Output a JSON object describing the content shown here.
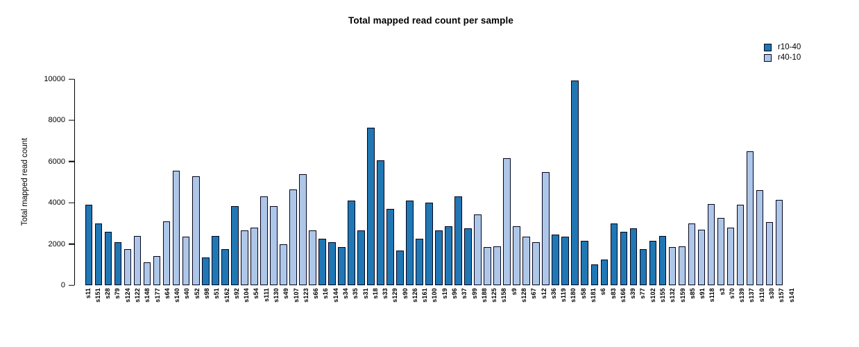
{
  "chart_data": {
    "type": "bar",
    "title": "Total mapped read count per sample",
    "xlabel": "",
    "ylabel": "Total mapped read count",
    "ylim": [
      0,
      10000
    ],
    "yticks": [
      0,
      2000,
      4000,
      6000,
      8000,
      10000
    ],
    "grid": false,
    "legend_position": "top-right",
    "groups": [
      {
        "name": "r10-40",
        "color": "#2077b4"
      },
      {
        "name": "r40-10",
        "color": "#aec7e8"
      }
    ],
    "bars": [
      {
        "sample": "s11",
        "group": "r10-40",
        "value": 3900
      },
      {
        "sample": "s151",
        "group": "r10-40",
        "value": 3000
      },
      {
        "sample": "s28",
        "group": "r10-40",
        "value": 2600
      },
      {
        "sample": "s79",
        "group": "r10-40",
        "value": 2100
      },
      {
        "sample": "s124",
        "group": "r40-10",
        "value": 1750
      },
      {
        "sample": "s122",
        "group": "r40-10",
        "value": 2400
      },
      {
        "sample": "s148",
        "group": "r40-10",
        "value": 1100
      },
      {
        "sample": "s177",
        "group": "r40-10",
        "value": 1400
      },
      {
        "sample": "s64",
        "group": "r40-10",
        "value": 3100
      },
      {
        "sample": "s140",
        "group": "r40-10",
        "value": 5550
      },
      {
        "sample": "s40",
        "group": "r40-10",
        "value": 2350
      },
      {
        "sample": "s52",
        "group": "r40-10",
        "value": 5300
      },
      {
        "sample": "s98",
        "group": "r10-40",
        "value": 1350
      },
      {
        "sample": "s51",
        "group": "r10-40",
        "value": 2400
      },
      {
        "sample": "s162",
        "group": "r10-40",
        "value": 1750
      },
      {
        "sample": "s92",
        "group": "r10-40",
        "value": 3850
      },
      {
        "sample": "s104",
        "group": "r40-10",
        "value": 2650
      },
      {
        "sample": "s54",
        "group": "r40-10",
        "value": 2800
      },
      {
        "sample": "s111",
        "group": "r40-10",
        "value": 4300
      },
      {
        "sample": "s130",
        "group": "r40-10",
        "value": 3850
      },
      {
        "sample": "s49",
        "group": "r40-10",
        "value": 2000
      },
      {
        "sample": "s107",
        "group": "r40-10",
        "value": 4650
      },
      {
        "sample": "s123",
        "group": "r40-10",
        "value": 5400
      },
      {
        "sample": "s66",
        "group": "r40-10",
        "value": 2650
      },
      {
        "sample": "s16",
        "group": "r10-40",
        "value": 2250
      },
      {
        "sample": "s144",
        "group": "r10-40",
        "value": 2100
      },
      {
        "sample": "s34",
        "group": "r10-40",
        "value": 1850
      },
      {
        "sample": "s35",
        "group": "r10-40",
        "value": 4100
      },
      {
        "sample": "s31",
        "group": "r10-40",
        "value": 2650
      },
      {
        "sample": "s18",
        "group": "r10-40",
        "value": 7650
      },
      {
        "sample": "s33",
        "group": "r10-40",
        "value": 6050
      },
      {
        "sample": "s129",
        "group": "r10-40",
        "value": 3700
      },
      {
        "sample": "s90",
        "group": "r10-40",
        "value": 1700
      },
      {
        "sample": "s126",
        "group": "r10-40",
        "value": 4100
      },
      {
        "sample": "s161",
        "group": "r10-40",
        "value": 2250
      },
      {
        "sample": "s100",
        "group": "r10-40",
        "value": 4000
      },
      {
        "sample": "s19",
        "group": "r10-40",
        "value": 2650
      },
      {
        "sample": "s96",
        "group": "r10-40",
        "value": 2850
      },
      {
        "sample": "s37",
        "group": "r10-40",
        "value": 4300
      },
      {
        "sample": "s99",
        "group": "r10-40",
        "value": 2750
      },
      {
        "sample": "s188",
        "group": "r40-10",
        "value": 3450
      },
      {
        "sample": "s125",
        "group": "r40-10",
        "value": 1850
      },
      {
        "sample": "s158",
        "group": "r40-10",
        "value": 1900
      },
      {
        "sample": "s9",
        "group": "r40-10",
        "value": 6150
      },
      {
        "sample": "s128",
        "group": "r40-10",
        "value": 2850
      },
      {
        "sample": "s67",
        "group": "r40-10",
        "value": 2350
      },
      {
        "sample": "s12",
        "group": "r40-10",
        "value": 2100
      },
      {
        "sample": "s36",
        "group": "r40-10",
        "value": 5500
      },
      {
        "sample": "s119",
        "group": "r10-40",
        "value": 2450
      },
      {
        "sample": "s180",
        "group": "r10-40",
        "value": 2350
      },
      {
        "sample": "s58",
        "group": "r10-40",
        "value": 9950
      },
      {
        "sample": "s181",
        "group": "r10-40",
        "value": 2150
      },
      {
        "sample": "s6",
        "group": "r10-40",
        "value": 1000
      },
      {
        "sample": "s83",
        "group": "r10-40",
        "value": 1250
      },
      {
        "sample": "s166",
        "group": "r10-40",
        "value": 3000
      },
      {
        "sample": "s39",
        "group": "r10-40",
        "value": 2600
      },
      {
        "sample": "s77",
        "group": "r10-40",
        "value": 2750
      },
      {
        "sample": "s102",
        "group": "r10-40",
        "value": 1750
      },
      {
        "sample": "s155",
        "group": "r10-40",
        "value": 2150
      },
      {
        "sample": "s132",
        "group": "r10-40",
        "value": 2400
      },
      {
        "sample": "s159",
        "group": "r40-10",
        "value": 1850
      },
      {
        "sample": "s85",
        "group": "r40-10",
        "value": 1900
      },
      {
        "sample": "s91",
        "group": "r40-10",
        "value": 3000
      },
      {
        "sample": "s118",
        "group": "r40-10",
        "value": 2700
      },
      {
        "sample": "s3",
        "group": "r40-10",
        "value": 3950
      },
      {
        "sample": "s70",
        "group": "r40-10",
        "value": 3250
      },
      {
        "sample": "s139",
        "group": "r40-10",
        "value": 2800
      },
      {
        "sample": "s137",
        "group": "r40-10",
        "value": 3900
      },
      {
        "sample": "s110",
        "group": "r40-10",
        "value": 6500
      },
      {
        "sample": "s30",
        "group": "r40-10",
        "value": 4600
      },
      {
        "sample": "s157",
        "group": "r40-10",
        "value": 3050
      },
      {
        "sample": "s141",
        "group": "r40-10",
        "value": 4150
      }
    ]
  }
}
